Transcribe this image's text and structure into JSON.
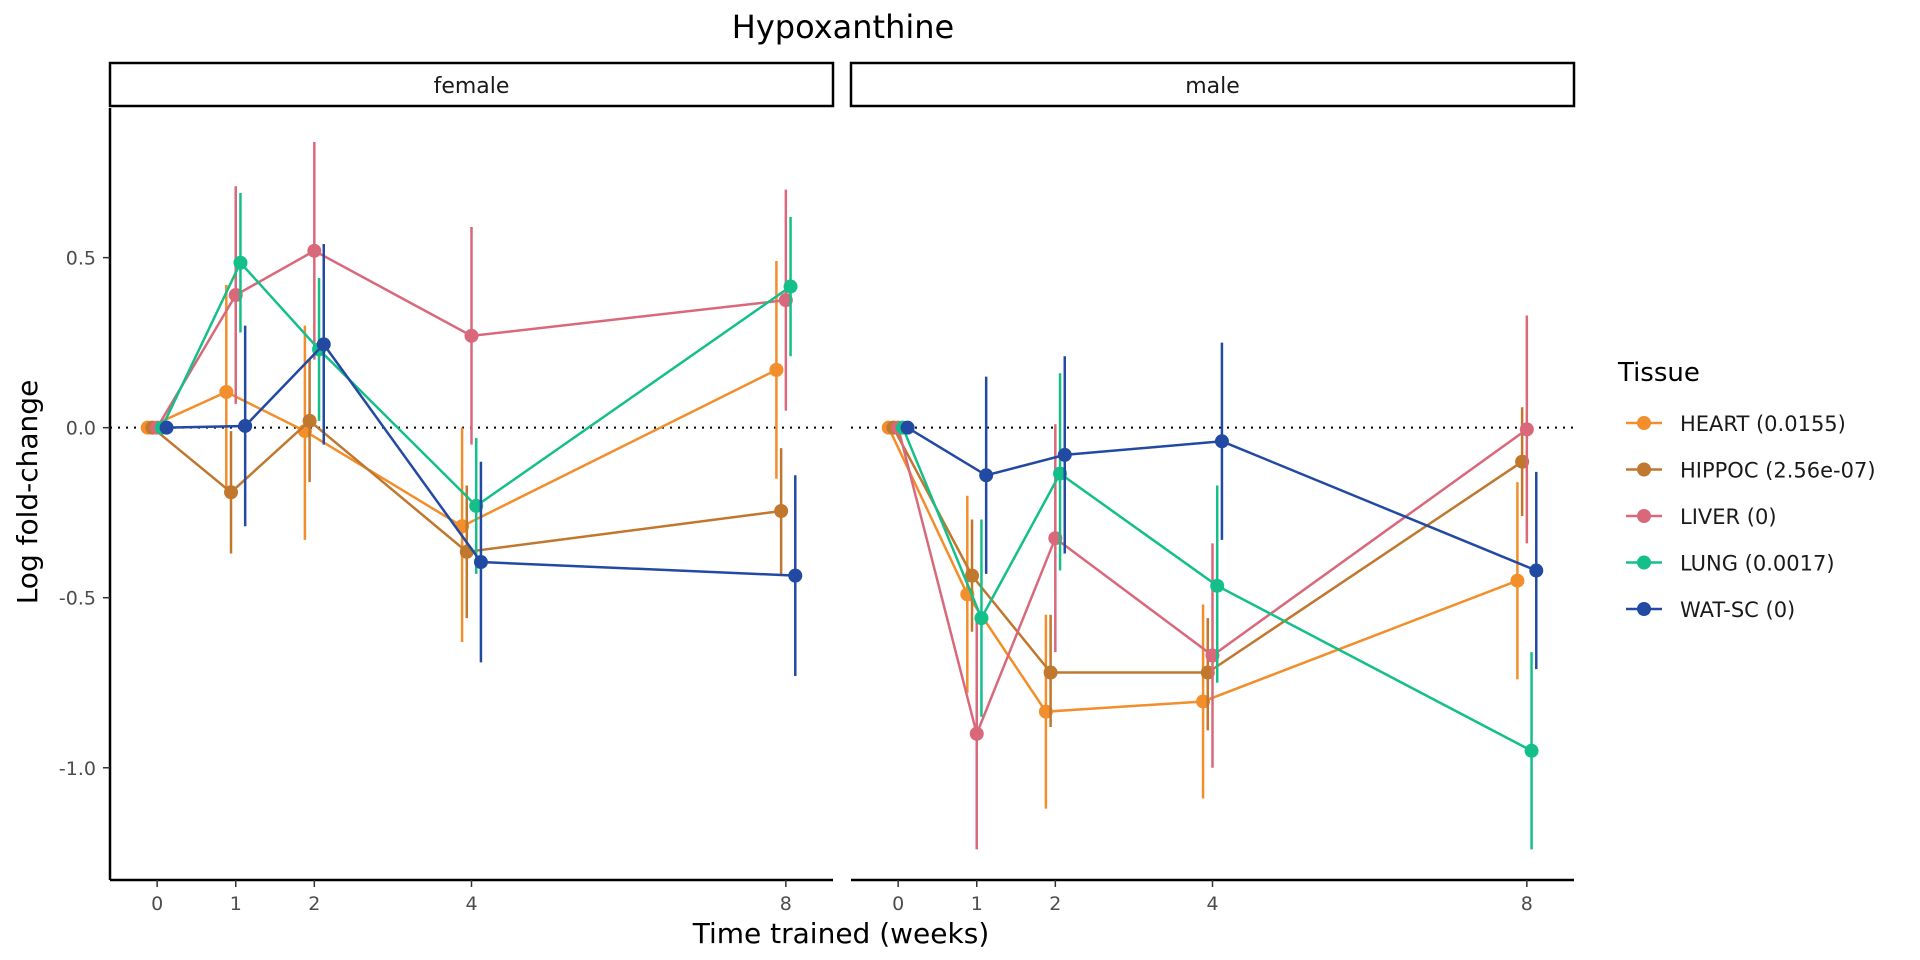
{
  "chart_data": {
    "type": "line",
    "title": "Hypoxanthine",
    "xlabel": "Time trained (weeks)",
    "ylabel": "Log fold-change",
    "ylim": [
      -1.33,
      0.94
    ],
    "xlim": [
      -0.6,
      8.6
    ],
    "x_ticks": [
      0,
      1,
      2,
      4,
      8
    ],
    "y_ticks": [
      0.5,
      0.0,
      -0.5,
      -1.0
    ],
    "y_tick_labels": [
      "0.5",
      "0.0",
      "-0.5",
      "-1.0"
    ],
    "reference_line": 0,
    "legend": {
      "title": "Tissue",
      "position": "right"
    },
    "panels": [
      {
        "label": "female",
        "series": [
          {
            "name": "HEART (0.0155)",
            "color": "#F28E2B",
            "points": [
              [
                0,
                0.0,
                0,
                0
              ],
              [
                1,
                0.105,
                -0.2,
                0.42
              ],
              [
                2,
                -0.01,
                -0.33,
                0.3
              ],
              [
                4,
                -0.29,
                -0.63,
                0.0
              ],
              [
                8,
                0.17,
                -0.15,
                0.49
              ]
            ]
          },
          {
            "name": "HIPPOC (2.56e-07)",
            "color": "#C0772E",
            "points": [
              [
                0,
                0.0,
                0,
                0
              ],
              [
                1,
                -0.19,
                -0.37,
                -0.01
              ],
              [
                2,
                0.02,
                -0.16,
                0.2
              ],
              [
                4,
                -0.365,
                -0.56,
                -0.17
              ],
              [
                8,
                -0.245,
                -0.43,
                -0.06
              ]
            ]
          },
          {
            "name": "LIVER (0)",
            "color": "#D9697A",
            "points": [
              [
                0,
                0.0,
                0,
                0
              ],
              [
                1,
                0.39,
                0.07,
                0.71
              ],
              [
                2,
                0.52,
                0.2,
                0.84
              ],
              [
                4,
                0.27,
                -0.05,
                0.59
              ],
              [
                8,
                0.375,
                0.05,
                0.7
              ]
            ]
          },
          {
            "name": "LUNG (0.0017)",
            "color": "#14BF8A",
            "points": [
              [
                0,
                0.0,
                0,
                0
              ],
              [
                1,
                0.485,
                0.28,
                0.69
              ],
              [
                2,
                0.23,
                0.02,
                0.44
              ],
              [
                4,
                -0.23,
                -0.43,
                -0.03
              ],
              [
                8,
                0.415,
                0.21,
                0.62
              ]
            ]
          },
          {
            "name": "WAT-SC (0)",
            "color": "#234AA3",
            "points": [
              [
                0,
                0.0,
                0,
                0
              ],
              [
                1,
                0.005,
                -0.29,
                0.3
              ],
              [
                2,
                0.245,
                -0.05,
                0.54
              ],
              [
                4,
                -0.395,
                -0.69,
                -0.1
              ],
              [
                8,
                -0.435,
                -0.73,
                -0.14
              ]
            ]
          }
        ]
      },
      {
        "label": "male",
        "series": [
          {
            "name": "HEART (0.0155)",
            "color": "#F28E2B",
            "points": [
              [
                0,
                0.0,
                0,
                0
              ],
              [
                1,
                -0.49,
                -0.78,
                -0.2
              ],
              [
                2,
                -0.835,
                -1.12,
                -0.55
              ],
              [
                4,
                -0.805,
                -1.09,
                -0.52
              ],
              [
                8,
                -0.45,
                -0.74,
                -0.16
              ]
            ]
          },
          {
            "name": "HIPPOC (2.56e-07)",
            "color": "#C0772E",
            "points": [
              [
                0,
                0.0,
                0,
                0
              ],
              [
                1,
                -0.435,
                -0.6,
                -0.27
              ],
              [
                2,
                -0.72,
                -0.88,
                -0.55
              ],
              [
                4,
                -0.72,
                -0.89,
                -0.56
              ],
              [
                8,
                -0.1,
                -0.26,
                0.06
              ]
            ]
          },
          {
            "name": "LIVER (0)",
            "color": "#D9697A",
            "points": [
              [
                0,
                0.0,
                0,
                0
              ],
              [
                1,
                -0.9,
                -1.24,
                -0.56
              ],
              [
                2,
                -0.325,
                -0.66,
                0.01
              ],
              [
                4,
                -0.67,
                -1.0,
                -0.34
              ],
              [
                8,
                -0.005,
                -0.34,
                0.33
              ]
            ]
          },
          {
            "name": "LUNG (0.0017)",
            "color": "#14BF8A",
            "points": [
              [
                0,
                0.0,
                0,
                0
              ],
              [
                1,
                -0.56,
                -0.85,
                -0.27
              ],
              [
                2,
                -0.135,
                -0.42,
                0.16
              ],
              [
                4,
                -0.465,
                -0.75,
                -0.17
              ],
              [
                8,
                -0.95,
                -1.24,
                -0.66
              ]
            ]
          },
          {
            "name": "WAT-SC (0)",
            "color": "#234AA3",
            "points": [
              [
                0,
                0.0,
                0,
                0
              ],
              [
                1,
                -0.14,
                -0.43,
                0.15
              ],
              [
                2,
                -0.08,
                -0.37,
                0.21
              ],
              [
                4,
                -0.04,
                -0.33,
                0.25
              ],
              [
                8,
                -0.42,
                -0.71,
                -0.13
              ]
            ]
          }
        ]
      }
    ]
  }
}
